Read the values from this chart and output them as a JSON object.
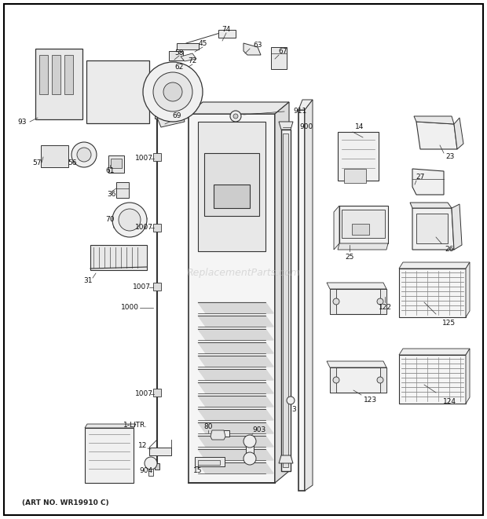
{
  "bg_color": "#ffffff",
  "border_color": "#000000",
  "art_no_text": "(ART NO. WR19910 C)",
  "watermark_text": "ReplacementParts.com",
  "fig_width": 6.2,
  "fig_height": 6.61,
  "dpi": 100,
  "line_color": "#333333",
  "label_color": "#111111",
  "label_fontsize": 6.5
}
